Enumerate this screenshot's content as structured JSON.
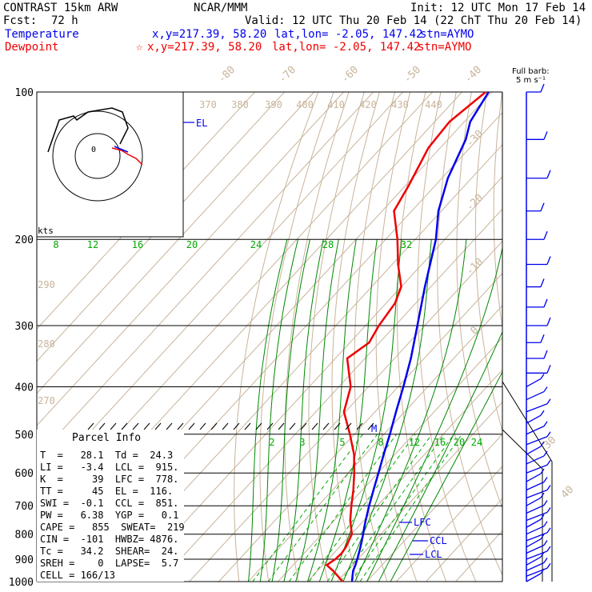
{
  "header": {
    "title": "CONTRAST 15km ARW",
    "source": "NCAR/MMM",
    "init": "Init: 12 UTC Mon 17 Feb 14",
    "fcst_label": "Fcst:",
    "fcst_value": "72 h",
    "valid": "Valid: 12 UTC Thu 20 Feb 14 (22 ChT Thu 20 Feb 14)",
    "temp_line": {
      "label": "Temperature",
      "xy": "x,y=217.39, 58.20",
      "latlon": "lat,lon= -2.05, 147.42",
      "stn": "stn=AYMO"
    },
    "dew_line": {
      "label": "Dewpoint",
      "xy": "x,y=217.39, 58.20",
      "latlon": "lat,lon= -2.05, 147.42",
      "stn": "stn=AYMO"
    }
  },
  "barbs": {
    "title": "Full barb:",
    "scale": "5 m s⁻¹"
  },
  "hodograph": {
    "label": "kts",
    "ring_label": "0"
  },
  "colors": {
    "temperature": "#0000ee",
    "dewpoint": "#ee0000",
    "isotherm": "#c8b49a",
    "mixing_ratio": "#00aa00",
    "adiabat": "#008800",
    "isobar": "#000000"
  },
  "chart_data": {
    "type": "line",
    "subtype": "skew-t log-p",
    "pressure_levels": [
      100,
      200,
      300,
      400,
      500,
      600,
      700,
      800,
      900,
      1000
    ],
    "isotherm_labels": [
      "-80",
      "-70",
      "-60",
      "-50",
      "-40",
      "-30",
      "-20",
      "-10",
      "0",
      "30",
      "40"
    ],
    "theta_labels": [
      "370",
      "380",
      "390",
      "400",
      "410",
      "420",
      "430",
      "440"
    ],
    "theta_low_labels": [
      "290",
      "280",
      "270"
    ],
    "mixing_ratio_upper": [
      "8",
      "12",
      "16",
      "20",
      "24",
      "28",
      "32"
    ],
    "mixing_ratio_lower": [
      "2",
      "3",
      "5",
      "8",
      "12",
      "16",
      "20",
      "24"
    ],
    "series": [
      {
        "name": "Temperature",
        "points": [
          [
            1000,
            25
          ],
          [
            975,
            23.5
          ],
          [
            950,
            22
          ],
          [
            925,
            21
          ],
          [
            900,
            19.8
          ],
          [
            875,
            18.5
          ],
          [
            850,
            17.1
          ],
          [
            825,
            15.6
          ],
          [
            800,
            14
          ],
          [
            775,
            12.3
          ],
          [
            750,
            10.6
          ],
          [
            700,
            7.2
          ],
          [
            650,
            3.8
          ],
          [
            600,
            0.2
          ],
          [
            550,
            -3.8
          ],
          [
            500,
            -8
          ],
          [
            450,
            -12.9
          ],
          [
            400,
            -18.2
          ],
          [
            350,
            -24.5
          ],
          [
            300,
            -32.5
          ],
          [
            250,
            -42
          ],
          [
            200,
            -53
          ],
          [
            175,
            -61
          ],
          [
            150,
            -68
          ],
          [
            125,
            -74
          ],
          [
            115,
            -78
          ],
          [
            100,
            -81
          ]
        ]
      },
      {
        "name": "Dewpoint",
        "points": [
          [
            1000,
            21.8
          ],
          [
            975,
            18.6
          ],
          [
            950,
            15.2
          ],
          [
            925,
            11.3
          ],
          [
            900,
            12.4
          ],
          [
            875,
            12.7
          ],
          [
            850,
            12.2
          ],
          [
            800,
            10.2
          ],
          [
            750,
            5.4
          ],
          [
            700,
            1.2
          ],
          [
            650,
            -3
          ],
          [
            600,
            -8
          ],
          [
            550,
            -13.8
          ],
          [
            500,
            -21.5
          ],
          [
            450,
            -30.5
          ],
          [
            400,
            -36
          ],
          [
            350,
            -46
          ],
          [
            325,
            -43.5
          ],
          [
            300,
            -45.5
          ],
          [
            270,
            -47
          ],
          [
            250,
            -50
          ],
          [
            225,
            -58
          ],
          [
            200,
            -66
          ],
          [
            175,
            -76
          ],
          [
            155,
            -79
          ],
          [
            130,
            -84
          ],
          [
            115,
            -85
          ],
          [
            100,
            -82
          ]
        ]
      }
    ],
    "annotations": [
      "EL",
      "LFC",
      "CCL",
      "LCL",
      "M"
    ],
    "wind_barbs_levels_hpa": [
      100,
      125,
      150,
      175,
      200,
      225,
      250,
      275,
      300,
      325,
      350,
      375,
      400,
      425,
      450,
      475,
      500,
      525,
      550,
      575,
      600,
      625,
      650,
      675,
      700,
      725,
      750,
      775,
      800,
      825,
      850,
      875,
      900,
      925,
      950,
      975,
      1000
    ]
  },
  "parcel_info": {
    "title": "Parcel Info",
    "rows": [
      "T  =   28.1  Td =  24.3",
      "LI =   -3.4  LCL =  915.",
      "K  =     39  LFC =  778.",
      "TT =     45  EL =  116.",
      "SWI =  -0.1  CCL =  851.",
      "PW =   6.38  YGP =   0.1",
      "CAPE =   855  SWEAT=  219",
      "CIN =  -101  HWBZ= 4876.",
      "Tc =   34.2  SHEAR=  24.",
      "SREH =    0  LAPSE=  5.7",
      "CELL = 166/13"
    ]
  }
}
